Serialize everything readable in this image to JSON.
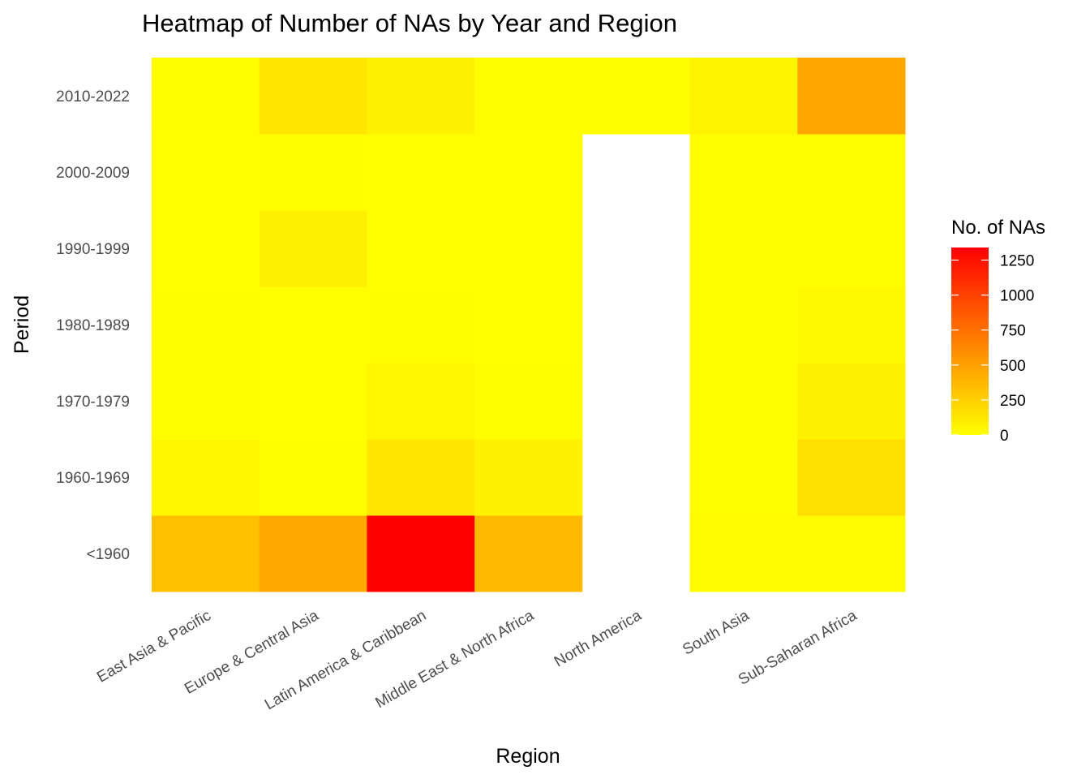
{
  "chart_data": {
    "type": "heatmap",
    "title": "Heatmap of Number of NAs by Year and Region",
    "xlabel": "Region",
    "ylabel": "Period",
    "x_categories": [
      "East Asia & Pacific",
      "Europe & Central Asia",
      "Latin America & Caribbean",
      "Middle East & North Africa",
      "North America",
      "South Asia",
      "Sub-Saharan Africa"
    ],
    "y_categories": [
      "<1960",
      "1960-1969",
      "1970-1979",
      "1980-1989",
      "1990-1999",
      "2000-2009",
      "2010-2022"
    ],
    "values": [
      [
        330,
        40,
        10,
        10,
        5,
        5,
        8
      ],
      [
        450,
        10,
        5,
        5,
        80,
        10,
        130
      ],
      [
        1340,
        130,
        50,
        10,
        5,
        5,
        70
      ],
      [
        360,
        70,
        10,
        5,
        5,
        5,
        10
      ],
      [
        null,
        null,
        null,
        null,
        null,
        null,
        10
      ],
      [
        20,
        10,
        10,
        10,
        10,
        10,
        60
      ],
      [
        20,
        170,
        70,
        30,
        10,
        10,
        470
      ]
    ],
    "values_note_axis": "values[x_index][y_index]",
    "legend": {
      "title": "No. of NAs",
      "ticks": [
        0,
        250,
        500,
        750,
        1000,
        1250
      ],
      "min": 0,
      "max": 1340,
      "low_color": "#FFFF00",
      "high_color": "#FF0000",
      "placement": "right"
    },
    "grid": false
  }
}
